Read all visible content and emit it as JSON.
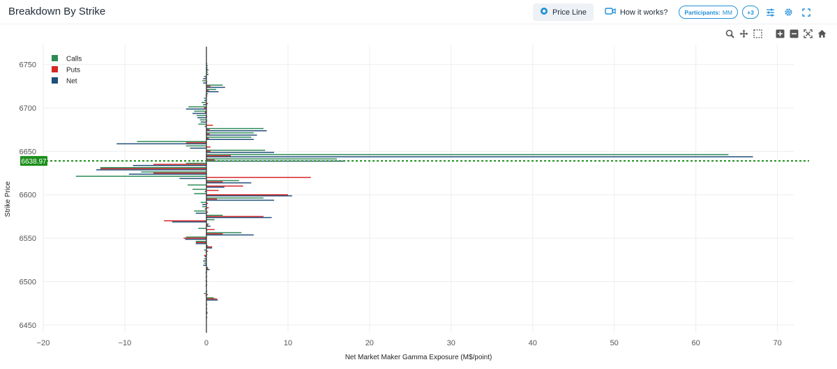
{
  "header": {
    "title": "Breakdown By Strike",
    "price_line_label": "Price Line",
    "how_it_works_label": "How it works?",
    "participants_label": "Participants:",
    "participants_value": "MM",
    "extra_count": "+3"
  },
  "colors": {
    "calls": "#2e8b57",
    "puts": "#d62728",
    "net": "#1f4e79",
    "price_line": "#1a8f1a",
    "accent": "#1f8fd8"
  },
  "chart_data": {
    "type": "bar",
    "orientation": "horizontal",
    "xlabel": "Net Market Maker Gamma Exposure (M$/point)",
    "ylabel": "Strike Price",
    "xlim": [
      -20,
      72
    ],
    "ylim": [
      6441,
      6773
    ],
    "x_ticks": [
      "−20",
      "−10",
      "0",
      "10",
      "20",
      "30",
      "40",
      "50",
      "60",
      "70"
    ],
    "y_ticks": [
      "6450",
      "6500",
      "6550",
      "6600",
      "6650",
      "6700",
      "6750"
    ],
    "legend": [
      "Calls",
      "Puts",
      "Net"
    ],
    "legend_position": "top-left",
    "price_line": {
      "value": 6638.97,
      "label": "6638.97"
    },
    "series": [
      {
        "name": "Calls",
        "points": [
          [
            6750,
            0.1
          ],
          [
            6745,
            0.15
          ],
          [
            6740,
            0.2
          ],
          [
            6735,
            -0.3
          ],
          [
            6730,
            -0.5
          ],
          [
            6725,
            2.0
          ],
          [
            6720,
            1.2
          ],
          [
            6715,
            0.2
          ],
          [
            6710,
            -0.3
          ],
          [
            6705,
            -0.6
          ],
          [
            6700,
            -2.2
          ],
          [
            6695,
            -1.5
          ],
          [
            6690,
            -1.2
          ],
          [
            6685,
            -0.8
          ],
          [
            6680,
            -1.0
          ],
          [
            6675,
            7.0
          ],
          [
            6670,
            5.8
          ],
          [
            6665,
            5.5
          ],
          [
            6660,
            -8.5
          ],
          [
            6655,
            -2.5
          ],
          [
            6650,
            7.2
          ],
          [
            6645,
            64.0
          ],
          [
            6640,
            16.0
          ],
          [
            6635,
            -2.5
          ],
          [
            6630,
            -13.0
          ],
          [
            6625,
            -8.0
          ],
          [
            6620,
            -16.0
          ],
          [
            6615,
            4.0
          ],
          [
            6610,
            -2.3
          ],
          [
            6605,
            -1.7
          ],
          [
            6600,
            -1.5
          ],
          [
            6595,
            7.0
          ],
          [
            6590,
            -0.7
          ],
          [
            6585,
            -0.5
          ],
          [
            6580,
            -1.5
          ],
          [
            6575,
            2.0
          ],
          [
            6570,
            1.0
          ],
          [
            6565,
            0.3
          ],
          [
            6560,
            -1.0
          ],
          [
            6555,
            4.3
          ],
          [
            6550,
            -2.5
          ],
          [
            6545,
            -1.3
          ],
          [
            6540,
            0.2
          ],
          [
            6535,
            -0.3
          ],
          [
            6530,
            0.1
          ],
          [
            6525,
            -0.3
          ],
          [
            6520,
            -0.3
          ],
          [
            6515,
            0.2
          ],
          [
            6510,
            0.1
          ],
          [
            6505,
            0.1
          ],
          [
            6500,
            -0.1
          ],
          [
            6495,
            0.1
          ],
          [
            6490,
            0.05
          ],
          [
            6485,
            -0.3
          ],
          [
            6480,
            0.9
          ],
          [
            6475,
            0.05
          ],
          [
            6470,
            0.05
          ],
          [
            6465,
            0.05
          ],
          [
            6460,
            0.05
          ],
          [
            6455,
            0.05
          ]
        ]
      },
      {
        "name": "Puts",
        "points": [
          [
            6750,
            0.05
          ],
          [
            6745,
            0.1
          ],
          [
            6740,
            0.05
          ],
          [
            6735,
            -0.1
          ],
          [
            6730,
            0.1
          ],
          [
            6725,
            0.5
          ],
          [
            6720,
            0.3
          ],
          [
            6715,
            -0.1
          ],
          [
            6710,
            0.05
          ],
          [
            6705,
            0.2
          ],
          [
            6700,
            -0.3
          ],
          [
            6695,
            -0.2
          ],
          [
            6690,
            0.1
          ],
          [
            6685,
            0.1
          ],
          [
            6680,
            0.8
          ],
          [
            6675,
            0.4
          ],
          [
            6670,
            0.4
          ],
          [
            6665,
            0.3
          ],
          [
            6660,
            -2.5
          ],
          [
            6655,
            0.5
          ],
          [
            6650,
            0.5
          ],
          [
            6645,
            3.0
          ],
          [
            6640,
            1.0
          ],
          [
            6635,
            -6.5
          ],
          [
            6630,
            -13.0
          ],
          [
            6625,
            -6.5
          ],
          [
            6620,
            12.8
          ],
          [
            6615,
            2.0
          ],
          [
            6610,
            4.5
          ],
          [
            6605,
            1.5
          ],
          [
            6600,
            10.0
          ],
          [
            6595,
            1.3
          ],
          [
            6590,
            0.2
          ],
          [
            6585,
            0.3
          ],
          [
            6580,
            0.2
          ],
          [
            6575,
            7.0
          ],
          [
            6570,
            -5.2
          ],
          [
            6565,
            0.2
          ],
          [
            6560,
            1.0
          ],
          [
            6555,
            2.0
          ],
          [
            6550,
            -2.8
          ],
          [
            6545,
            -1.3
          ],
          [
            6540,
            0.7
          ],
          [
            6535,
            0.2
          ],
          [
            6530,
            -0.3
          ],
          [
            6525,
            -0.1
          ],
          [
            6520,
            -0.1
          ],
          [
            6515,
            0.2
          ],
          [
            6510,
            -0.1
          ],
          [
            6505,
            -0.1
          ],
          [
            6500,
            0.1
          ],
          [
            6495,
            -0.1
          ],
          [
            6490,
            0.05
          ],
          [
            6485,
            0.2
          ],
          [
            6480,
            1.3
          ],
          [
            6475,
            0.05
          ],
          [
            6470,
            0.05
          ],
          [
            6465,
            0.1
          ],
          [
            6460,
            0.05
          ],
          [
            6455,
            0.05
          ]
        ]
      },
      {
        "name": "Net",
        "points": [
          [
            6750,
            0.15
          ],
          [
            6745,
            0.25
          ],
          [
            6740,
            0.25
          ],
          [
            6735,
            -0.4
          ],
          [
            6730,
            -0.4
          ],
          [
            6725,
            2.3
          ],
          [
            6720,
            1.5
          ],
          [
            6715,
            0.1
          ],
          [
            6710,
            -0.25
          ],
          [
            6705,
            -0.4
          ],
          [
            6700,
            -2.5
          ],
          [
            6695,
            -1.7
          ],
          [
            6690,
            -1.1
          ],
          [
            6685,
            -0.7
          ],
          [
            6680,
            -0.2
          ],
          [
            6675,
            7.4
          ],
          [
            6670,
            6.2
          ],
          [
            6665,
            5.8
          ],
          [
            6660,
            -11.0
          ],
          [
            6655,
            -2.0
          ],
          [
            6650,
            8.3
          ],
          [
            6645,
            67.0
          ],
          [
            6640,
            17.0
          ],
          [
            6635,
            -9.0
          ],
          [
            6630,
            -13.5
          ],
          [
            6625,
            -9.5
          ],
          [
            6620,
            -3.3
          ],
          [
            6615,
            5.5
          ],
          [
            6610,
            2.2
          ],
          [
            6605,
            -0.2
          ],
          [
            6600,
            10.5
          ],
          [
            6595,
            8.3
          ],
          [
            6590,
            -0.5
          ],
          [
            6585,
            -0.2
          ],
          [
            6580,
            -1.3
          ],
          [
            6575,
            8.0
          ],
          [
            6570,
            -4.2
          ],
          [
            6565,
            0.5
          ],
          [
            6560,
            0.1
          ],
          [
            6555,
            5.8
          ],
          [
            6550,
            -2.6
          ],
          [
            6545,
            -1.3
          ],
          [
            6540,
            0.7
          ],
          [
            6535,
            -0.1
          ],
          [
            6530,
            -0.2
          ],
          [
            6525,
            -0.4
          ],
          [
            6520,
            -0.4
          ],
          [
            6515,
            0.4
          ],
          [
            6510,
            0.05
          ],
          [
            6505,
            0.05
          ],
          [
            6500,
            -0.05
          ],
          [
            6495,
            0.05
          ],
          [
            6490,
            0.1
          ],
          [
            6485,
            -0.1
          ],
          [
            6480,
            1.4
          ],
          [
            6475,
            0.1
          ],
          [
            6470,
            0.1
          ],
          [
            6465,
            0.15
          ],
          [
            6460,
            0.1
          ],
          [
            6455,
            0.05
          ]
        ]
      }
    ]
  }
}
